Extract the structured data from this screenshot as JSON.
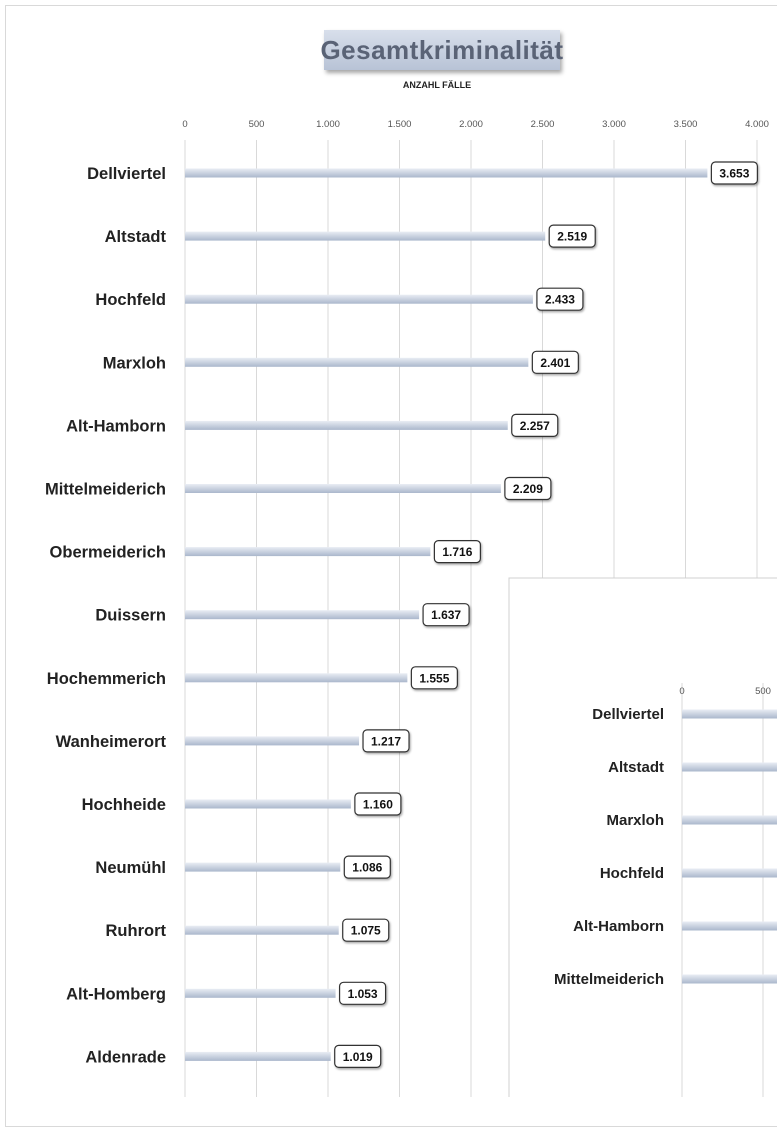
{
  "chart_data": [
    {
      "type": "bar",
      "orientation": "horizontal",
      "title": "Gesamtkriminalität",
      "subtitle": "ANZAHL FÄLLE",
      "xlim": [
        0,
        4000
      ],
      "ticks": [
        "0",
        "500",
        "1.000",
        "1.500",
        "2.000",
        "2.500",
        "3.000",
        "3.500",
        "4.000"
      ],
      "grid": true,
      "categories": [
        "Dellviertel",
        "Altstadt",
        "Hochfeld",
        "Marxloh",
        "Alt-Hamborn",
        "Mittelmeiderich",
        "Obermeiderich",
        "Duissern",
        "Hochemmerich",
        "Wanheimerort",
        "Hochheide",
        "Neumühl",
        "Ruhrort",
        "Alt-Homberg",
        "Aldenrade"
      ],
      "values": [
        3653,
        2519,
        2433,
        2401,
        2257,
        2209,
        1716,
        1637,
        1555,
        1217,
        1160,
        1086,
        1075,
        1053,
        1019
      ],
      "labels": [
        "3.653",
        "2.519",
        "2.433",
        "2.401",
        "2.257",
        "2.209",
        "1.716",
        "1.637",
        "1.555",
        "1.217",
        "1.160",
        "1.086",
        "1.075",
        "1.053",
        "1.019"
      ]
    },
    {
      "type": "bar",
      "orientation": "horizontal",
      "ticks": [
        "0",
        "500"
      ],
      "categories": [
        "Dellviertel",
        "Altstadt",
        "Marxloh",
        "Hochfeld",
        "Alt-Hamborn",
        "Mittelmeiderich"
      ]
    }
  ],
  "colors": {
    "bar_light": "#e9edf4",
    "bar_dark": "#aab7cc",
    "grid": "#d9d9d9"
  }
}
